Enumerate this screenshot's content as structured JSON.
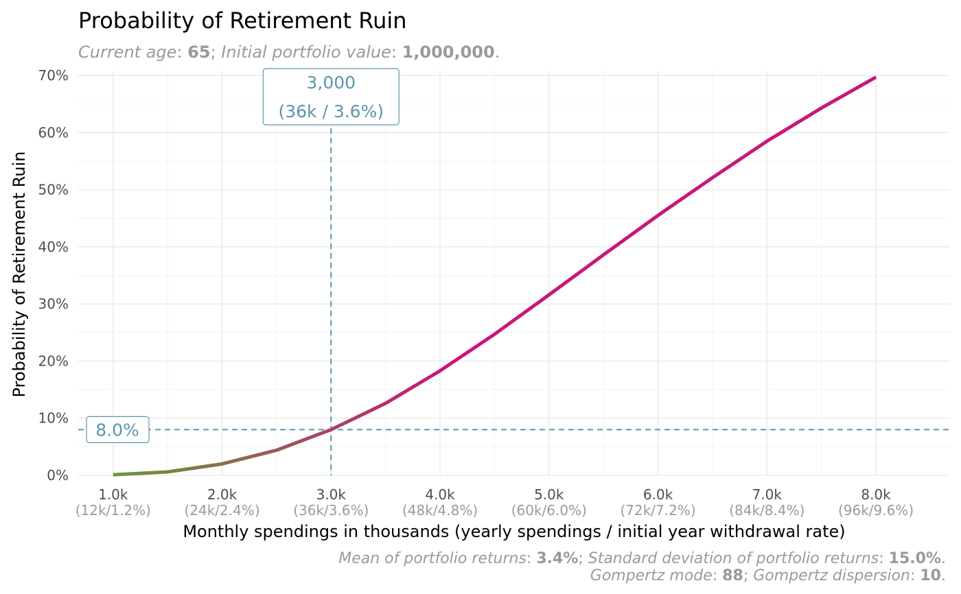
{
  "chart_data": {
    "type": "line",
    "title": "Probability of Retirement Ruin",
    "subtitle": {
      "age_label": "Current age",
      "age_value": "65",
      "portfolio_label": "Initial portfolio value",
      "portfolio_value": "1,000,000"
    },
    "caption": {
      "mean_label": "Mean of portfolio returns",
      "mean_value": "3.4%",
      "sd_label": "Standard deviation of portfolio returns",
      "sd_value": "15.0%",
      "mode_label": "Gompertz mode",
      "mode_value": "88",
      "dispersion_label": "Gompertz dispersion",
      "dispersion_value": "10"
    },
    "xlabel": "Monthly spendings in thousands (yearly spendings / initial year withdrawal rate)",
    "ylabel": "Probability of Retirement Ruin",
    "xlim": [
      0.68,
      8.68
    ],
    "ylim": [
      0,
      70
    ],
    "x_ticks": [
      {
        "value": 1.0,
        "label": "1.0k",
        "sublabel": "(12k/1.2%)"
      },
      {
        "value": 2.0,
        "label": "2.0k",
        "sublabel": "(24k/2.4%)"
      },
      {
        "value": 3.0,
        "label": "3.0k",
        "sublabel": "(36k/3.6%)"
      },
      {
        "value": 4.0,
        "label": "4.0k",
        "sublabel": "(48k/4.8%)"
      },
      {
        "value": 5.0,
        "label": "5.0k",
        "sublabel": "(60k/6.0%)"
      },
      {
        "value": 6.0,
        "label": "6.0k",
        "sublabel": "(72k/7.2%)"
      },
      {
        "value": 7.0,
        "label": "7.0k",
        "sublabel": "(84k/8.4%)"
      },
      {
        "value": 8.0,
        "label": "8.0k",
        "sublabel": "(96k/9.6%)"
      }
    ],
    "y_ticks": [
      {
        "value": 0,
        "label": "0%"
      },
      {
        "value": 10,
        "label": "10%"
      },
      {
        "value": 20,
        "label": "20%"
      },
      {
        "value": 30,
        "label": "30%"
      },
      {
        "value": 40,
        "label": "40%"
      },
      {
        "value": 50,
        "label": "50%"
      },
      {
        "value": 60,
        "label": "60%"
      },
      {
        "value": 70,
        "label": "70%"
      }
    ],
    "grid": true,
    "series": [
      {
        "x": [
          1.0,
          1.5,
          2.0,
          2.5,
          3.0,
          3.5,
          4.0,
          4.5,
          5.0,
          5.5,
          6.0,
          6.5,
          7.0,
          7.5,
          8.0
        ],
        "values": [
          0.1,
          0.6,
          2.0,
          4.4,
          8.0,
          12.6,
          18.3,
          24.7,
          31.6,
          38.6,
          45.5,
          52.1,
          58.5,
          64.3,
          69.7
        ],
        "color_low": "#6a9a36",
        "color_high": "#c8177b"
      }
    ],
    "reference": {
      "x": 3.0,
      "y": 8.0,
      "color": "#5b95ad",
      "x_label_line1": "3,000",
      "x_label_line2": "(36k / 3.6%)",
      "y_label": "8.0%"
    }
  }
}
